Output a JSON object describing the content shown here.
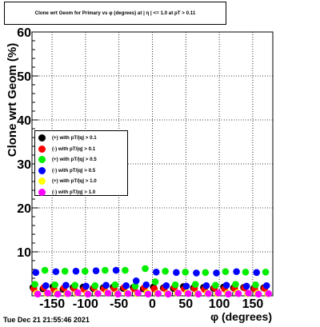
{
  "title": "Clone wrt Geom for Primary vs φ (degrees) at | η | <= 1.0 at pT > 0.11",
  "timestamp": "Tue Dec 21 21:55:46 2021",
  "chart_data": {
    "type": "scatter",
    "title": "Clone wrt Geom for Primary vs φ (degrees) at | η | <= 1.0 at pT > 0.11",
    "xlabel": "φ (degrees)",
    "ylabel": "Clone wrt Geom (%)",
    "xlim": [
      -180,
      180
    ],
    "ylim": [
      0,
      60
    ],
    "xticks": [
      -150,
      -100,
      -50,
      0,
      50,
      100,
      150
    ],
    "yticks": [
      10,
      20,
      30,
      40,
      50,
      60
    ],
    "grid": true,
    "legend_position": "center-left",
    "x": [
      -175,
      -160,
      -145,
      -130,
      -115,
      -100,
      -85,
      -70,
      -55,
      -40,
      -25,
      -10,
      5,
      20,
      35,
      50,
      65,
      80,
      95,
      110,
      125,
      140,
      155,
      170
    ],
    "series": [
      {
        "name": "(+) with pT/|q| > 0.1",
        "color": "#000000",
        "values": [
          1.9,
          1.6,
          2.1,
          1.5,
          1.9,
          2.0,
          1.7,
          1.8,
          2.0,
          1.7,
          1.9,
          1.6,
          2.0,
          1.8,
          1.7,
          2.1,
          1.8,
          1.9,
          1.7,
          2.0,
          1.8,
          1.9,
          1.7,
          1.8
        ]
      },
      {
        "name": "(-) with pT/|q| > 0.1",
        "color": "#ff0000",
        "values": [
          1.6,
          1.9,
          1.5,
          1.8,
          1.7,
          1.5,
          1.8,
          1.6,
          1.7,
          1.9,
          1.6,
          1.8,
          1.6,
          1.7,
          1.9,
          1.6,
          1.7,
          1.5,
          1.8,
          1.6,
          1.7,
          1.8,
          1.6,
          1.7
        ]
      },
      {
        "name": "(+) with pT/|q| > 0.5",
        "color": "#00ee00",
        "values": [
          2.6,
          5.8,
          2.5,
          5.6,
          2.4,
          5.6,
          2.3,
          5.8,
          2.5,
          5.8,
          2.2,
          6.2,
          3.2,
          5.6,
          2.5,
          5.4,
          2.6,
          5.3,
          2.4,
          5.5,
          2.6,
          5.4,
          2.5,
          5.4
        ]
      },
      {
        "name": "(-) with pT/|q| > 0.5",
        "color": "#0000ff",
        "values": [
          5.3,
          2.3,
          5.5,
          2.4,
          5.6,
          2.2,
          5.7,
          2.4,
          5.8,
          2.3,
          3.4,
          2.5,
          5.4,
          2.3,
          5.3,
          2.2,
          5.2,
          2.3,
          5.2,
          2.4,
          5.5,
          2.2,
          5.3,
          2.3
        ]
      },
      {
        "name": "(+) with pT/|q| > 1.0",
        "color": "#ffff00",
        "values": [
          0.6,
          0.5,
          0.7,
          0.5,
          0.6,
          0.5,
          0.6,
          0.7,
          0.5,
          0.6,
          0.5,
          0.7,
          0.6,
          0.5,
          0.6,
          0.7,
          0.5,
          0.6,
          0.5,
          0.6,
          0.7,
          0.5,
          0.6,
          0.5
        ]
      },
      {
        "name": "(-) with pT/|q| > 1.0",
        "color": "#ff00ff",
        "values": [
          0.4,
          0.6,
          0.4,
          0.5,
          0.7,
          0.4,
          0.5,
          0.6,
          0.4,
          0.5,
          0.6,
          0.4,
          0.5,
          0.4,
          0.6,
          0.5,
          0.4,
          0.5,
          0.6,
          0.4,
          0.5,
          0.6,
          0.4,
          0.5
        ]
      }
    ]
  }
}
